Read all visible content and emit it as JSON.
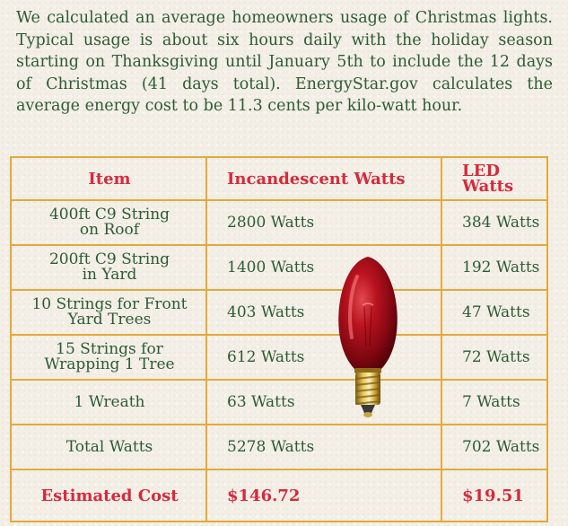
{
  "intro": "We calculated an average homeowners usage of Christmas lights. Typical usage is about six hours daily with the holiday season starting on Thanksgiving until January 5th to include the 12 days of Christmas (41 days total). EnergyStar.gov calculates the average energy cost to be 11.3 cents per kilo-watt hour.",
  "table": {
    "headers": {
      "item": "Item",
      "incandescent": "Incandescent Watts",
      "led": "LED Watts"
    },
    "rows": [
      {
        "item_line1": "400ft C9 String",
        "item_line2": "on Roof",
        "incandescent": "2800 Watts",
        "led": "384 Watts"
      },
      {
        "item_line1": "200ft C9 String",
        "item_line2": "in Yard",
        "incandescent": "1400 Watts",
        "led": "192 Watts"
      },
      {
        "item_line1": "10 Strings for Front",
        "item_line2": "Yard Trees",
        "incandescent": "403 Watts",
        "led": "47 Watts"
      },
      {
        "item_line1": "15 Strings for",
        "item_line2": "Wrapping 1 Tree",
        "incandescent": "612 Watts",
        "led": "72 Watts"
      },
      {
        "item": "1 Wreath",
        "incandescent": "63 Watts",
        "led": "7 Watts"
      },
      {
        "item": "Total Watts",
        "incandescent": "5278 Watts",
        "led": "702 Watts"
      }
    ],
    "cost": {
      "label": "Estimated Cost",
      "incandescent": "$146.72",
      "led": "$19.51"
    }
  },
  "colors": {
    "text_green": "#2d5a34",
    "accent_red": "#d62a3c",
    "grid_gold": "#e5a93a",
    "background": "#f3efe6"
  },
  "image": {
    "bulb": "red-c9-bulb-icon"
  }
}
